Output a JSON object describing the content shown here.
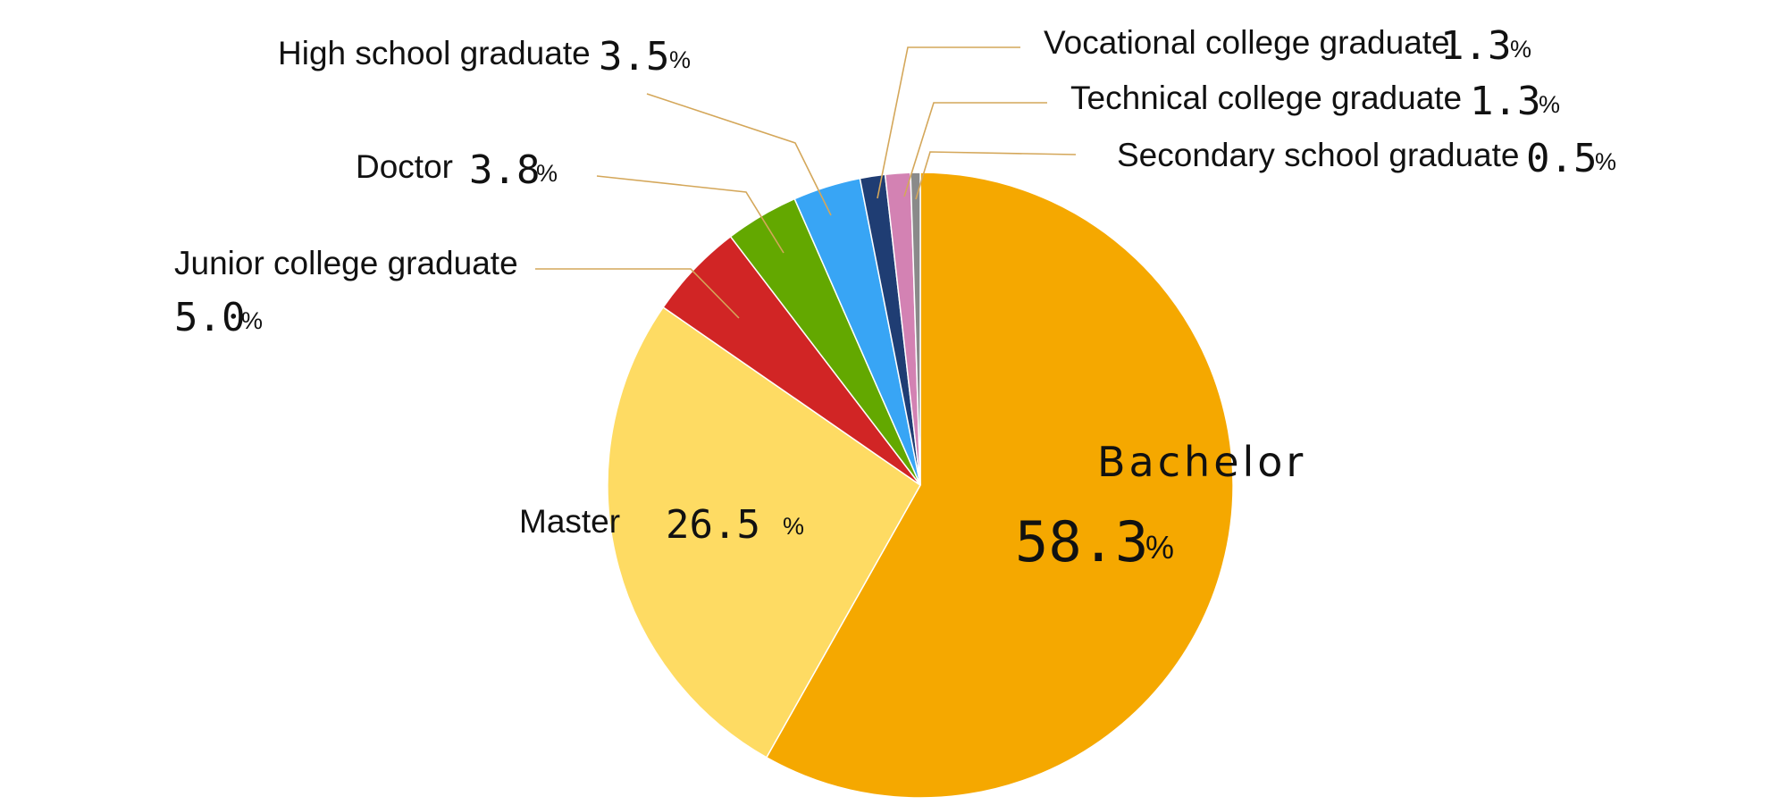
{
  "chart_data": {
    "type": "pie",
    "start_angle_deg": 0,
    "direction": "clockwise",
    "slices": [
      {
        "label": "Bachelor",
        "value": 58.3,
        "display": "58.3",
        "unit": "%",
        "color": "#f5a800"
      },
      {
        "label": "Master",
        "value": 26.5,
        "display": "26.5",
        "unit": "%",
        "color": "#fedb63"
      },
      {
        "label": "Junior college graduate",
        "value": 5.0,
        "display": "5.0",
        "unit": "%",
        "color": "#d12525"
      },
      {
        "label": "Doctor",
        "value": 3.8,
        "display": "3.8",
        "unit": "%",
        "color": "#63a800"
      },
      {
        "label": "High school graduate",
        "value": 3.5,
        "display": "3.5",
        "unit": "%",
        "color": "#38a5f5"
      },
      {
        "label": "Vocational college graduate",
        "value": 1.3,
        "display": "1.3",
        "unit": "%",
        "color": "#1f3d73"
      },
      {
        "label": "Technical college graduate",
        "value": 1.3,
        "display": "1.3",
        "unit": "%",
        "color": "#d382b3"
      },
      {
        "label": "Secondary school graduate",
        "value": 0.5,
        "display": "0.5",
        "unit": "%",
        "color": "#8a8a8a"
      }
    ]
  }
}
